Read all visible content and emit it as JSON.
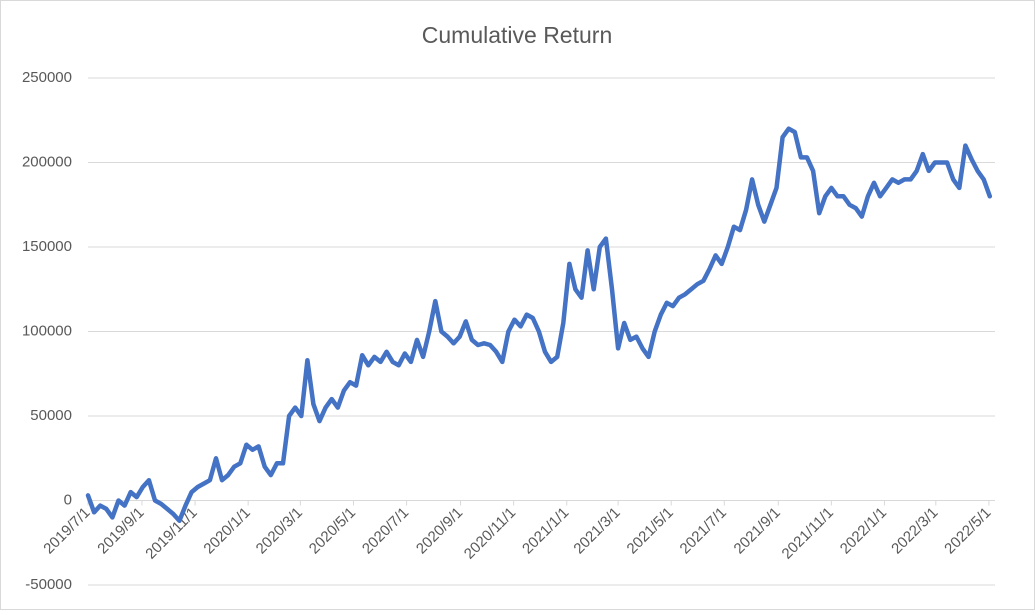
{
  "chart_data": {
    "type": "line",
    "title": "Cumulative Return",
    "x": [
      "2019/7/1",
      "2019/7/8",
      "2019/7/15",
      "2019/7/22",
      "2019/7/29",
      "2019/8/5",
      "2019/8/12",
      "2019/8/19",
      "2019/8/26",
      "2019/9/2",
      "2019/9/9",
      "2019/9/16",
      "2019/9/23",
      "2019/9/30",
      "2019/10/7",
      "2019/10/14",
      "2019/10/21",
      "2019/10/28",
      "2019/11/4",
      "2019/11/11",
      "2019/11/18",
      "2019/11/25",
      "2019/12/2",
      "2019/12/9",
      "2019/12/16",
      "2019/12/23",
      "2019/12/30",
      "2020/1/6",
      "2020/1/13",
      "2020/1/20",
      "2020/1/27",
      "2020/2/3",
      "2020/2/10",
      "2020/2/17",
      "2020/2/24",
      "2020/3/2",
      "2020/3/9",
      "2020/3/16",
      "2020/3/23",
      "2020/3/30",
      "2020/4/6",
      "2020/4/13",
      "2020/4/20",
      "2020/4/27",
      "2020/5/4",
      "2020/5/11",
      "2020/5/18",
      "2020/5/25",
      "2020/6/1",
      "2020/6/8",
      "2020/6/15",
      "2020/6/22",
      "2020/6/29",
      "2020/7/6",
      "2020/7/13",
      "2020/7/20",
      "2020/7/27",
      "2020/8/3",
      "2020/8/10",
      "2020/8/17",
      "2020/8/24",
      "2020/8/31",
      "2020/9/7",
      "2020/9/14",
      "2020/9/21",
      "2020/9/28",
      "2020/10/5",
      "2020/10/12",
      "2020/10/19",
      "2020/10/26",
      "2020/11/2",
      "2020/11/9",
      "2020/11/16",
      "2020/11/23",
      "2020/11/30",
      "2020/12/7",
      "2020/12/14",
      "2020/12/21",
      "2020/12/28",
      "2021/1/4",
      "2021/1/11",
      "2021/1/18",
      "2021/1/25",
      "2021/2/1",
      "2021/2/8",
      "2021/2/15",
      "2021/2/22",
      "2021/3/1",
      "2021/3/8",
      "2021/3/15",
      "2021/3/22",
      "2021/3/29",
      "2021/4/5",
      "2021/4/12",
      "2021/4/19",
      "2021/4/26",
      "2021/5/3",
      "2021/5/10",
      "2021/5/17",
      "2021/5/24",
      "2021/5/31",
      "2021/6/7",
      "2021/6/14",
      "2021/6/21",
      "2021/6/28",
      "2021/7/5",
      "2021/7/12",
      "2021/7/19",
      "2021/7/26",
      "2021/8/2",
      "2021/8/9",
      "2021/8/16",
      "2021/8/23",
      "2021/8/30",
      "2021/9/6",
      "2021/9/13",
      "2021/9/20",
      "2021/9/27",
      "2021/10/4",
      "2021/10/11",
      "2021/10/18",
      "2021/10/25",
      "2021/11/1",
      "2021/11/8",
      "2021/11/15",
      "2021/11/22",
      "2021/11/29",
      "2021/12/6",
      "2021/12/13",
      "2021/12/20",
      "2021/12/27",
      "2022/1/3",
      "2022/1/10",
      "2022/1/17",
      "2022/1/24",
      "2022/1/31",
      "2022/2/7",
      "2022/2/14",
      "2022/2/21",
      "2022/2/28",
      "2022/3/7",
      "2022/3/14",
      "2022/3/21",
      "2022/3/28",
      "2022/4/4",
      "2022/4/11",
      "2022/4/18",
      "2022/4/25",
      "2022/5/2"
    ],
    "values": [
      3000,
      -7000,
      -3000,
      -5000,
      -10000,
      0,
      -3000,
      5000,
      2000,
      8000,
      12000,
      0,
      -2000,
      -5000,
      -8000,
      -12000,
      -3000,
      5000,
      8000,
      10000,
      12000,
      25000,
      12000,
      15000,
      20000,
      22000,
      33000,
      30000,
      32000,
      20000,
      15000,
      22000,
      22000,
      50000,
      55000,
      50000,
      83000,
      57000,
      47000,
      55000,
      60000,
      55000,
      65000,
      70000,
      68000,
      86000,
      80000,
      85000,
      82000,
      88000,
      82000,
      80000,
      87000,
      82000,
      95000,
      85000,
      100000,
      118000,
      100000,
      97000,
      93000,
      97000,
      106000,
      95000,
      92000,
      93000,
      92000,
      88000,
      82000,
      100000,
      107000,
      103000,
      110000,
      108000,
      100000,
      88000,
      82000,
      85000,
      105000,
      140000,
      125000,
      120000,
      148000,
      125000,
      150000,
      155000,
      125000,
      90000,
      105000,
      95000,
      97000,
      90000,
      85000,
      100000,
      110000,
      117000,
      115000,
      120000,
      122000,
      125000,
      128000,
      130000,
      137000,
      145000,
      140000,
      150000,
      162000,
      160000,
      172000,
      190000,
      175000,
      165000,
      175000,
      185000,
      215000,
      220000,
      218000,
      203000,
      203000,
      195000,
      170000,
      180000,
      185000,
      180000,
      180000,
      175000,
      173000,
      168000,
      180000,
      188000,
      180000,
      185000,
      190000,
      188000,
      190000,
      190000,
      195000,
      205000,
      195000,
      200000,
      200000,
      200000,
      190000,
      185000,
      210000,
      202000,
      195000,
      190000,
      180000
    ],
    "color": "#4472c4",
    "xlim": [
      "2019/7/1",
      "2022/5/8"
    ],
    "xticks": [
      "2019/7/1",
      "2019/9/1",
      "2019/11/1",
      "2020/1/1",
      "2020/3/1",
      "2020/5/1",
      "2020/7/1",
      "2020/9/1",
      "2020/11/1",
      "2021/1/1",
      "2021/3/1",
      "2021/5/1",
      "2021/7/1",
      "2021/9/1",
      "2021/11/1",
      "2022/1/1",
      "2022/3/1",
      "2022/5/1"
    ],
    "ylim": [
      -50000,
      250000
    ],
    "yticks": [
      -50000,
      0,
      50000,
      100000,
      150000,
      200000,
      250000
    ],
    "grid": true
  }
}
